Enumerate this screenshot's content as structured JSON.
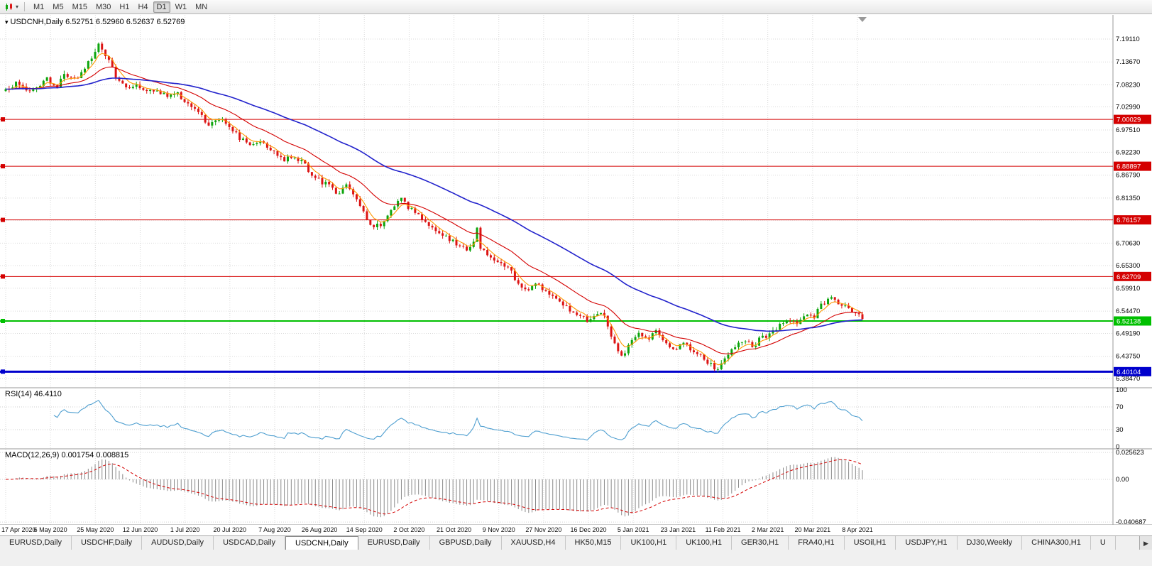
{
  "icons": {
    "symbol_dropdown": "▾",
    "toolbar_dropdown": "▾",
    "tab_scroll_right": "▶"
  },
  "toolbar": {
    "timeframes": [
      "M1",
      "M5",
      "M15",
      "M30",
      "H1",
      "H4",
      "D1",
      "W1",
      "MN"
    ],
    "active_timeframe": "D1"
  },
  "chart": {
    "title": "USDCNH,Daily",
    "ohlc": "6.52751 6.52960 6.52637 6.52769"
  },
  "chart_data": {
    "type": "candlestick",
    "symbol": "USDCNH",
    "timeframe": "Daily",
    "open": "6.52751",
    "high": "6.52960",
    "low": "6.52637",
    "close": "6.52769",
    "price_axis_labels": [
      "7.19110",
      "7.13670",
      "7.08230",
      "7.02990",
      "6.97510",
      "6.92230",
      "6.86790",
      "6.81350",
      "6.76070",
      "6.70630",
      "6.65300",
      "6.59910",
      "6.54470",
      "6.49190",
      "6.43750",
      "6.38470"
    ],
    "price_axis_range": [
      7.1911,
      6.3847
    ],
    "x_axis_dates": [
      "17 Apr 2020",
      "6 May 2020",
      "25 May 2020",
      "12 Jun 2020",
      "1 Jul 2020",
      "20 Jul 2020",
      "7 Aug 2020",
      "26 Aug 2020",
      "14 Sep 2020",
      "2 Oct 2020",
      "21 Oct 2020",
      "9 Nov 2020",
      "27 Nov 2020",
      "16 Dec 2020",
      "5 Jan 2021",
      "23 Jan 2021",
      "11 Feb 2021",
      "2 Mar 2021",
      "20 Mar 2021",
      "8 Apr 2021"
    ],
    "hlines": [
      {
        "price": 7.00029,
        "label": "7.00029",
        "color": "#d40000",
        "width": 1
      },
      {
        "price": 6.88897,
        "label": "6.88897",
        "color": "#d40000",
        "width": 1
      },
      {
        "price": 6.76157,
        "label": "6.76157",
        "color": "#d40000",
        "width": 1
      },
      {
        "price": 6.62709,
        "label": "6.62709",
        "color": "#d40000",
        "width": 1
      },
      {
        "price": 6.52138,
        "label": "6.52138",
        "color": "#00c000",
        "width": 2
      },
      {
        "price": 6.40104,
        "label": "6.40104",
        "color": "#0000cd",
        "width": 3
      }
    ],
    "candle_count": 250,
    "candle_up_color": "#0da50d",
    "candle_down_color": "#dc1414",
    "price_path": [
      [
        0.0,
        7.07
      ],
      [
        0.012,
        7.088
      ],
      [
        0.025,
        7.062
      ],
      [
        0.038,
        7.075
      ],
      [
        0.048,
        7.1
      ],
      [
        0.058,
        7.072
      ],
      [
        0.07,
        7.11
      ],
      [
        0.082,
        7.092
      ],
      [
        0.095,
        7.13
      ],
      [
        0.108,
        7.178
      ],
      [
        0.118,
        7.15
      ],
      [
        0.13,
        7.095
      ],
      [
        0.142,
        7.068
      ],
      [
        0.152,
        7.082
      ],
      [
        0.163,
        7.06
      ],
      [
        0.175,
        7.07
      ],
      [
        0.188,
        7.058
      ],
      [
        0.2,
        7.062
      ],
      [
        0.212,
        7.042
      ],
      [
        0.225,
        7.015
      ],
      [
        0.238,
        6.988
      ],
      [
        0.25,
        7.0
      ],
      [
        0.262,
        6.978
      ],
      [
        0.275,
        6.952
      ],
      [
        0.288,
        6.938
      ],
      [
        0.3,
        6.95
      ],
      [
        0.312,
        6.925
      ],
      [
        0.325,
        6.905
      ],
      [
        0.338,
        6.915
      ],
      [
        0.35,
        6.888
      ],
      [
        0.362,
        6.862
      ],
      [
        0.375,
        6.845
      ],
      [
        0.388,
        6.82
      ],
      [
        0.398,
        6.842
      ],
      [
        0.408,
        6.815
      ],
      [
        0.42,
        6.772
      ],
      [
        0.43,
        6.742
      ],
      [
        0.442,
        6.758
      ],
      [
        0.452,
        6.792
      ],
      [
        0.462,
        6.808
      ],
      [
        0.475,
        6.782
      ],
      [
        0.488,
        6.758
      ],
      [
        0.5,
        6.742
      ],
      [
        0.515,
        6.722
      ],
      [
        0.53,
        6.7
      ],
      [
        0.545,
        6.69
      ],
      [
        0.549,
        6.755
      ],
      [
        0.554,
        6.692
      ],
      [
        0.565,
        6.678
      ],
      [
        0.578,
        6.655
      ],
      [
        0.59,
        6.638
      ],
      [
        0.6,
        6.608
      ],
      [
        0.61,
        6.595
      ],
      [
        0.62,
        6.612
      ],
      [
        0.632,
        6.585
      ],
      [
        0.645,
        6.568
      ],
      [
        0.658,
        6.548
      ],
      [
        0.67,
        6.535
      ],
      [
        0.68,
        6.522
      ],
      [
        0.69,
        6.54
      ],
      [
        0.7,
        6.528
      ],
      [
        0.71,
        6.468
      ],
      [
        0.718,
        6.432
      ],
      [
        0.728,
        6.468
      ],
      [
        0.74,
        6.49
      ],
      [
        0.75,
        6.478
      ],
      [
        0.76,
        6.495
      ],
      [
        0.77,
        6.472
      ],
      [
        0.78,
        6.452
      ],
      [
        0.79,
        6.468
      ],
      [
        0.8,
        6.452
      ],
      [
        0.81,
        6.438
      ],
      [
        0.82,
        6.425
      ],
      [
        0.832,
        6.405
      ],
      [
        0.842,
        6.438
      ],
      [
        0.852,
        6.458
      ],
      [
        0.862,
        6.478
      ],
      [
        0.872,
        6.462
      ],
      [
        0.882,
        6.482
      ],
      [
        0.892,
        6.492
      ],
      [
        0.902,
        6.508
      ],
      [
        0.912,
        6.522
      ],
      [
        0.922,
        6.515
      ],
      [
        0.932,
        6.532
      ],
      [
        0.942,
        6.528
      ],
      [
        0.95,
        6.552
      ],
      [
        0.958,
        6.57
      ],
      [
        0.964,
        6.578
      ],
      [
        0.972,
        6.56
      ],
      [
        0.98,
        6.563
      ],
      [
        0.988,
        6.545
      ],
      [
        1.0,
        6.528
      ]
    ],
    "moving_averages": [
      {
        "period": 5,
        "color": "#ff9900"
      },
      {
        "period": 20,
        "color": "#d40000"
      },
      {
        "period": 60,
        "color": "#2222cc"
      }
    ],
    "rsi": {
      "label": "RSI(14) 46.4110",
      "period": 14,
      "levels": [
        70,
        30
      ],
      "axis_labels": [
        "100",
        "70",
        "30",
        "0"
      ],
      "color": "#4f9fd0"
    },
    "macd": {
      "label": "MACD(12,26,9) 0.001754 0.008815",
      "fast": 12,
      "slow": 26,
      "signal": 9,
      "axis_labels": [
        "0.025623",
        "0.00",
        "-0.040687"
      ],
      "bar_color": "#8a8a8a",
      "signal_color": "#d40000"
    }
  },
  "tabs": {
    "items": [
      "EURUSD,Daily",
      "USDCHF,Daily",
      "AUDUSD,Daily",
      "USDCAD,Daily",
      "USDCNH,Daily",
      "EURUSD,Daily",
      "GBPUSD,Daily",
      "XAUUSD,H4",
      "HK50,M15",
      "UK100,H1",
      "UK100,H1",
      "GER30,H1",
      "FRA40,H1",
      "USOil,H1",
      "USDJPY,H1",
      "DJ30,Weekly",
      "CHINA300,H1",
      "U"
    ],
    "active_index": 4
  }
}
